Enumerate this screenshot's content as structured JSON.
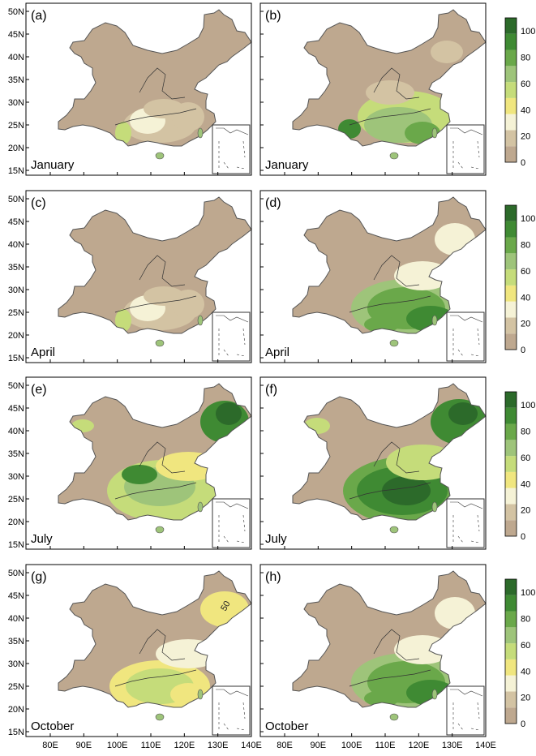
{
  "panels": [
    {
      "letter": "(a)",
      "month": "January",
      "pattern": "lowA"
    },
    {
      "letter": "(b)",
      "month": "January",
      "pattern": "lowB"
    },
    {
      "letter": "(c)",
      "month": "April",
      "pattern": "lowA"
    },
    {
      "letter": "(d)",
      "month": "April",
      "pattern": "midB"
    },
    {
      "letter": "(e)",
      "month": "July",
      "pattern": "highA"
    },
    {
      "letter": "(f)",
      "month": "July",
      "pattern": "highB"
    },
    {
      "letter": "(g)",
      "month": "October",
      "pattern": "midA"
    },
    {
      "letter": "(h)",
      "month": "October",
      "pattern": "midB"
    }
  ],
  "lat_ticks": [
    "15N",
    "20N",
    "25N",
    "30N",
    "35N",
    "40N",
    "45N",
    "50N"
  ],
  "lon_ticks": [
    "80E",
    "90E",
    "100E",
    "110E",
    "120E",
    "130E",
    "140E"
  ],
  "colorbar": {
    "ticks": [
      "0",
      "20",
      "40",
      "60",
      "80",
      "100"
    ],
    "colors": [
      "#bea88f",
      "#d3c3a3",
      "#f5f2d6",
      "#f0e67f",
      "#c5dc7a",
      "#9ec47a",
      "#6aa84a",
      "#3f8a33",
      "#2c6a2a"
    ]
  },
  "annotation": "50",
  "colors": {
    "frame": "#000000",
    "land": "#b8a086"
  }
}
